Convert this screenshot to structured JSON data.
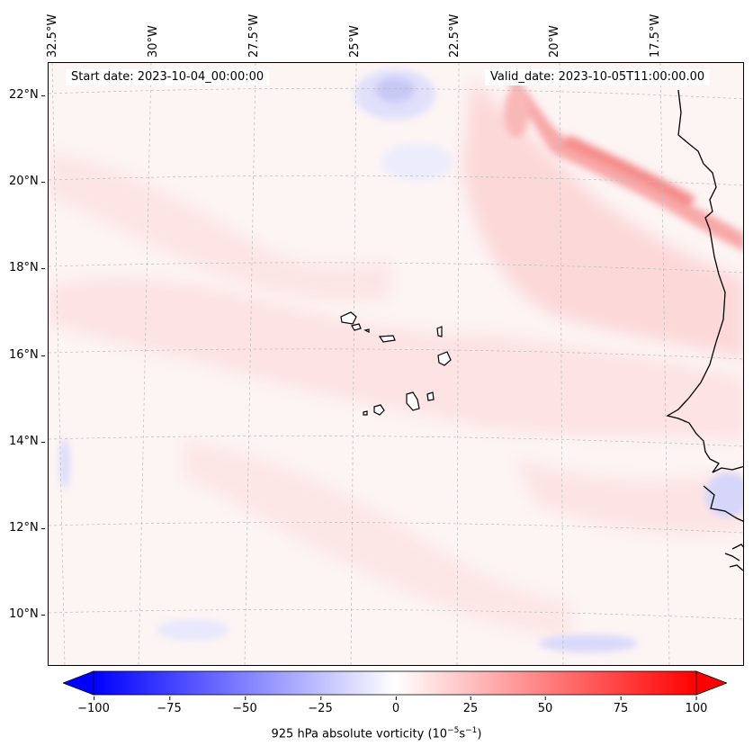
{
  "map": {
    "projection_note": "",
    "info_left": "Start date: 2023-10-04_00:00:00",
    "info_right": "Valid_date: 2023-10-05T11:00:00.00",
    "lon_labels": [
      "32.5°W",
      "30°W",
      "27.5°W",
      "25°W",
      "22.5°W",
      "20°W",
      "17.5°W"
    ],
    "lat_labels": [
      "22°N",
      "20°N",
      "18°N",
      "16°N",
      "14°N",
      "12°N",
      "10°N"
    ],
    "colors": {
      "negative_max": "#0000ff",
      "positive_max": "#ff0000",
      "neutral": "#ffffff",
      "coastline": "#000000",
      "gridline": "#bbbbbb"
    }
  },
  "colorbar": {
    "ticks": [
      "−100",
      "−75",
      "−50",
      "−25",
      "0",
      "25",
      "50",
      "75",
      "100"
    ],
    "vmin": -100,
    "vmax": 100,
    "label_text": "925 hPa absolute vorticity (10",
    "label_exp1": "−5",
    "label_mid": "s",
    "label_exp2": "−1",
    "label_end": ")"
  }
}
